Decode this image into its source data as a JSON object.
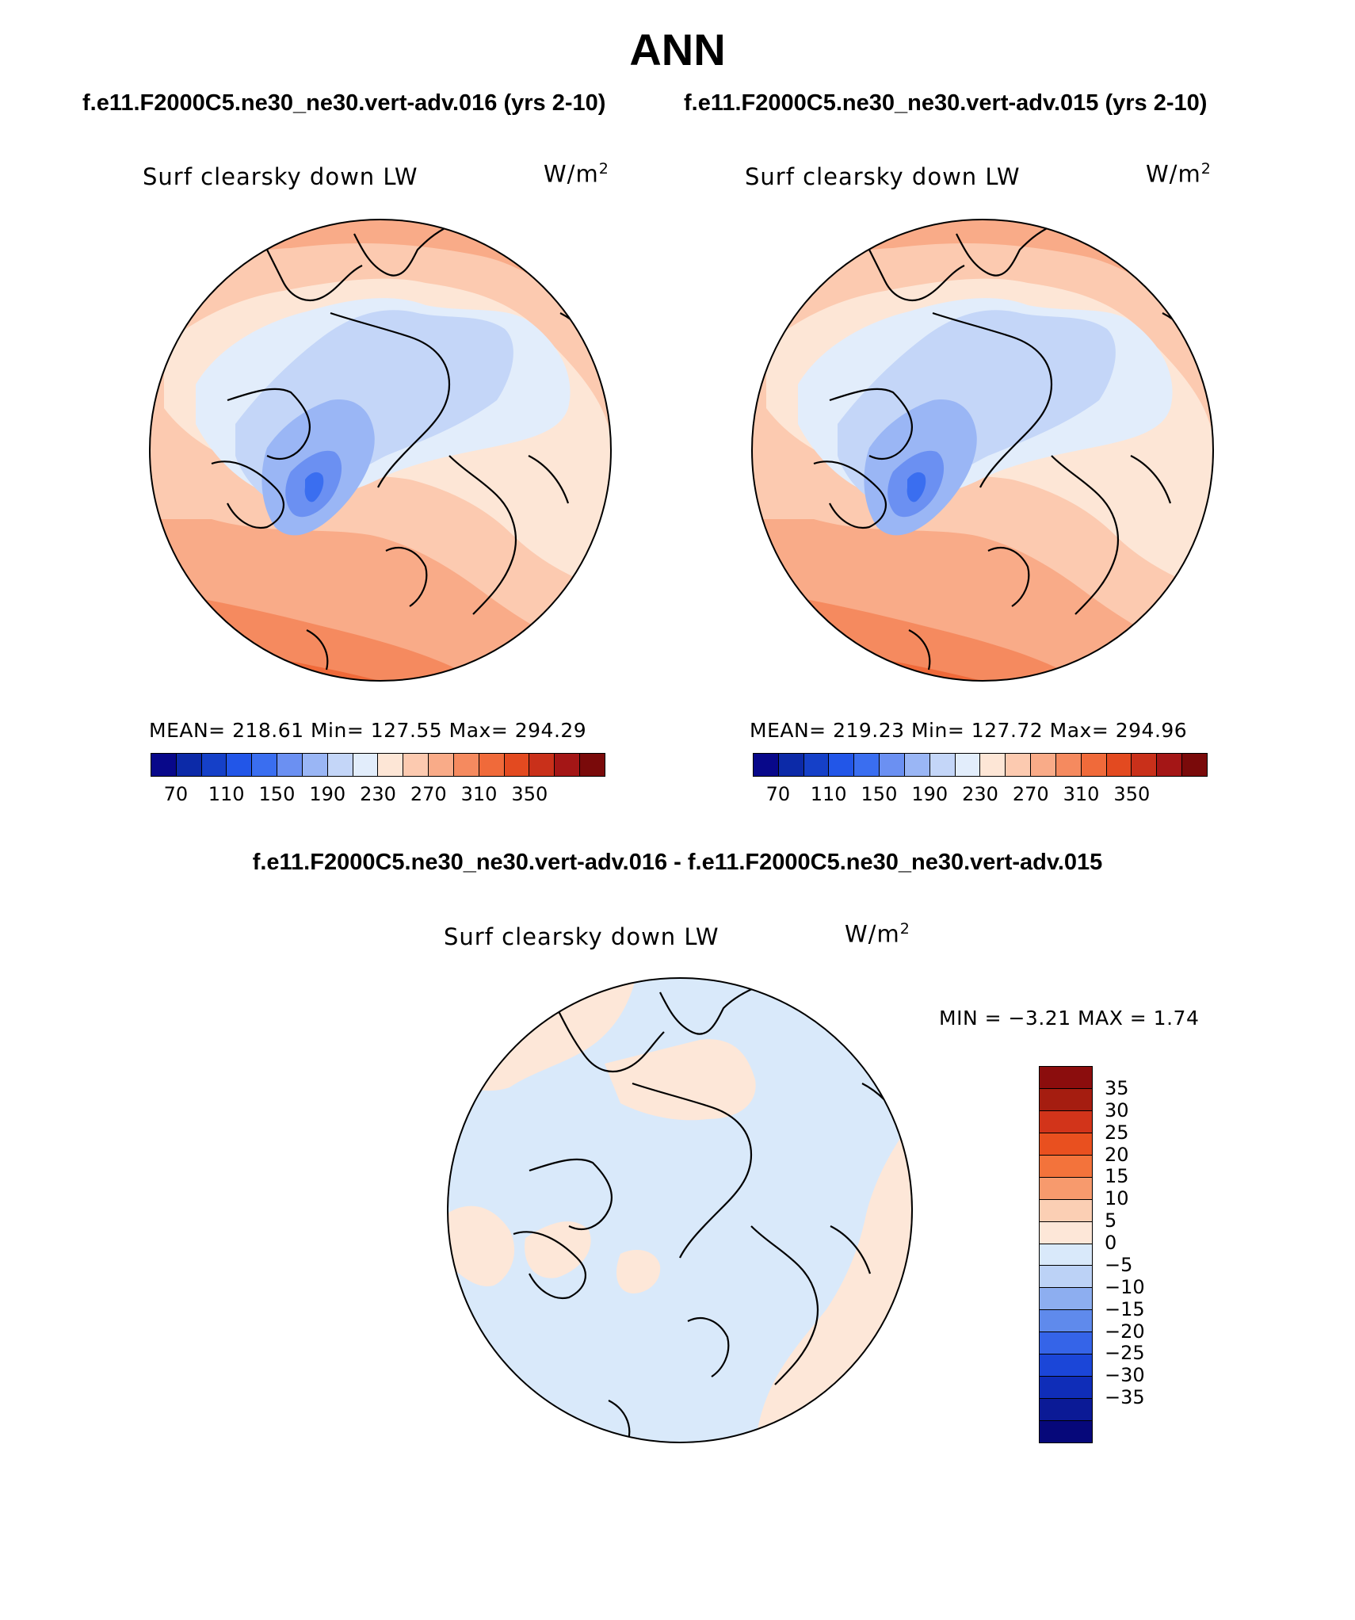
{
  "figure": {
    "title": "ANN",
    "left_case_title": "f.e11.F2000C5.ne30_ne30.vert-adv.016 (yrs 2-10)",
    "right_case_title": "f.e11.F2000C5.ne30_ne30.vert-adv.015 (yrs 2-10)",
    "diff_title": "f.e11.F2000C5.ne30_ne30.vert-adv.016 - f.e11.F2000C5.ne30_ne30.vert-adv.015"
  },
  "panels": {
    "left": {
      "variable": "Surf clearsky down LW",
      "units_base": "W/m",
      "units_exp": "2",
      "stats": "MEAN= 218.61   Min= 127.55   Max= 294.29"
    },
    "right": {
      "variable": "Surf clearsky down LW",
      "units_base": "W/m",
      "units_exp": "2",
      "stats": "MEAN= 219.23   Min= 127.72   Max= 294.96"
    },
    "diff": {
      "variable": "Surf clearsky down LW",
      "units_base": "W/m",
      "units_exp": "2",
      "stats": "MIN =   −3.21  MAX =    1.74"
    }
  },
  "colorbar_abs": {
    "colors": [
      "#08088a",
      "#0c2aa8",
      "#1540c8",
      "#2256e8",
      "#3a6ef0",
      "#6b90f2",
      "#9ab6f5",
      "#c4d6f8",
      "#e2edfb",
      "#fde6d6",
      "#fccab0",
      "#f9ab88",
      "#f58a5f",
      "#f06a3a",
      "#e34a20",
      "#c9301a",
      "#a41616",
      "#7a0a0a"
    ],
    "tick_labels": [
      "70",
      "110",
      "150",
      "190",
      "230",
      "270",
      "310",
      "350"
    ]
  },
  "colorbar_diff": {
    "colors": [
      "#8b0d0d",
      "#a51d10",
      "#d2341a",
      "#e9501f",
      "#f3733b",
      "#f79a6d",
      "#fbcfb4",
      "#fde7d8",
      "#d9e9fa",
      "#bcd2f6",
      "#8daef0",
      "#5f8aec",
      "#3564e8",
      "#1b46d8",
      "#0f2db8",
      "#0b1a96",
      "#06087a"
    ],
    "tick_labels": [
      "35",
      "30",
      "25",
      "20",
      "15",
      "10",
      "5",
      "0",
      "−5",
      "−10",
      "−15",
      "−20",
      "−25",
      "−30",
      "−35"
    ]
  }
}
